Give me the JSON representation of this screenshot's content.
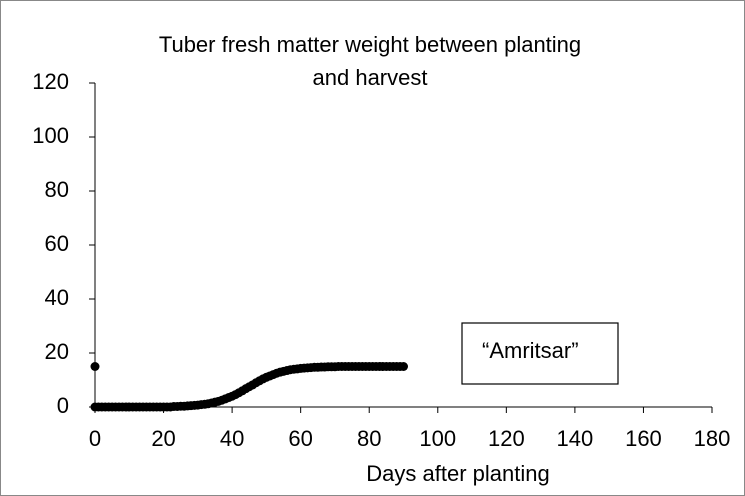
{
  "chart_data": {
    "type": "scatter",
    "title": "Tuber fresh matter weight between planting and harvest",
    "xlabel": "Days after planting",
    "annotation": "“Amritsar”",
    "xlim": [
      0,
      180
    ],
    "xticks": [
      0,
      20,
      40,
      60,
      80,
      100,
      120,
      140,
      160,
      180
    ],
    "ylim": [
      0,
      120
    ],
    "yticks": [
      0,
      20,
      40,
      60,
      80,
      100,
      120
    ],
    "grid": false,
    "series": [
      {
        "color": "#000000",
        "x": [
          0,
          1,
          2,
          3,
          4,
          5,
          6,
          7,
          8,
          9,
          10,
          11,
          12,
          13,
          14,
          15,
          16,
          17,
          18,
          19,
          20,
          21,
          22,
          23,
          24,
          25,
          26,
          27,
          28,
          29,
          30,
          31,
          32,
          33,
          34,
          35,
          36,
          37,
          38,
          39,
          40,
          41,
          42,
          43,
          44,
          45,
          46,
          47,
          48,
          49,
          50,
          51,
          52,
          53,
          54,
          55,
          56,
          57,
          58,
          59,
          60,
          61,
          62,
          63,
          64,
          65,
          66,
          67,
          68,
          69,
          70,
          71,
          72,
          73,
          74,
          75,
          76,
          77,
          78,
          79,
          80,
          81,
          82,
          83,
          84,
          85,
          86,
          87,
          88,
          89,
          90
        ],
        "values": [
          0,
          0,
          0,
          0,
          0,
          0,
          0,
          0,
          0,
          0,
          0,
          0,
          0,
          0,
          0,
          0,
          0,
          0,
          0,
          0,
          0,
          0,
          0,
          0.2,
          0.2,
          0.3,
          0.3,
          0.4,
          0.5,
          0.6,
          0.7,
          0.9,
          1.0,
          1.2,
          1.5,
          1.8,
          2.1,
          2.5,
          3.0,
          3.5,
          4.0,
          4.6,
          5.3,
          6.0,
          6.8,
          7.5,
          8.2,
          9.0,
          9.7,
          10.4,
          11.0,
          11.5,
          12.0,
          12.5,
          12.9,
          13.2,
          13.5,
          13.8,
          14.0,
          14.1,
          14.3,
          14.4,
          14.5,
          14.6,
          14.7,
          14.7,
          14.8,
          14.8,
          14.9,
          14.9,
          14.9,
          15,
          15,
          15,
          15,
          15,
          15,
          15,
          15,
          15,
          15,
          15,
          15,
          15,
          15,
          15,
          15,
          15,
          15,
          15,
          15
        ]
      },
      {
        "color": "#000000",
        "x": [
          0
        ],
        "values": [
          15
        ]
      }
    ]
  }
}
